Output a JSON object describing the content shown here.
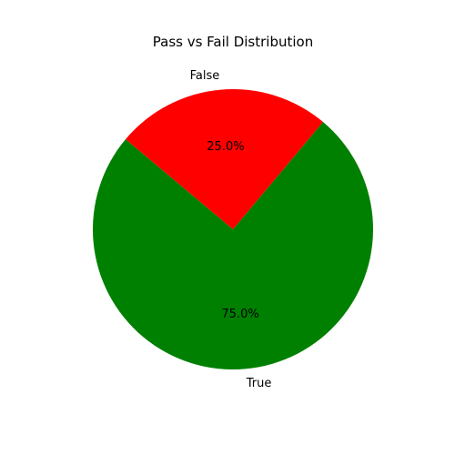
{
  "chart_data": {
    "type": "pie",
    "title": "Pass vs Fail Distribution",
    "slices": [
      {
        "label": "True",
        "value": 75.0,
        "pct_label": "75.0%",
        "color": "#008000"
      },
      {
        "label": "False",
        "value": 25.0,
        "pct_label": "25.0%",
        "color": "#ff0000"
      }
    ],
    "start_angle_deg": 140,
    "direction": "counterclockwise",
    "legend": "none"
  }
}
